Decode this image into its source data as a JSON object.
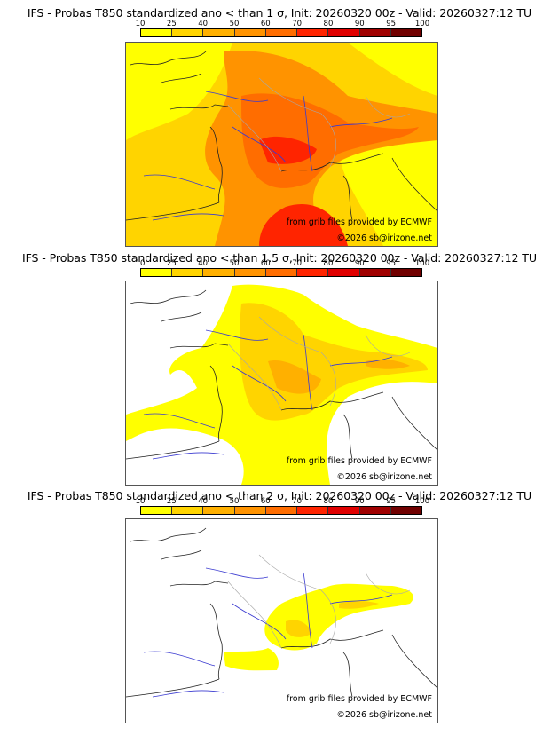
{
  "colorbar": {
    "ticks": [
      "10",
      "25",
      "40",
      "50",
      "60",
      "70",
      "80",
      "90",
      "95",
      "100"
    ],
    "colors": [
      "#ffff00",
      "#ffd400",
      "#ffb000",
      "#ff9300",
      "#ff6d00",
      "#ff2400",
      "#e00000",
      "#a00000",
      "#700000"
    ]
  },
  "panels": [
    {
      "title": "IFS - Probas T850  standardized ano < than 1 σ, Init: 20260320 00z - Valid: 20260327:12 TU",
      "credit_line1": "from grib files provided by ECMWF",
      "credit_line2": "©2026 sb@irizone.net"
    },
    {
      "title": "IFS - Probas T850  standardized ano < than 1.5 σ, Init: 20260320 00z - Valid: 20260327:12 TU",
      "credit_line1": "from grib files provided by ECMWF",
      "credit_line2": "©2026 sb@irizone.net"
    },
    {
      "title": "IFS - Probas T850  standardized ano < than 2 σ, Init: 20260320 00z - Valid: 20260327:12 TU",
      "credit_line1": "from grib files provided by ECMWF",
      "credit_line2": "©2026 sb@irizone.net"
    }
  ],
  "map_colors": {
    "coast": "#222222",
    "rivers": "#3a3ad0",
    "borders": "#a8a8a8"
  }
}
